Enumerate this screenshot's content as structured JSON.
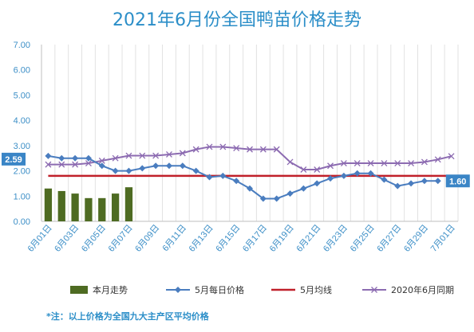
{
  "chart_data": {
    "type": "line",
    "title": "2021年6月份全国鸭苗价格走势",
    "ylim": [
      0,
      7
    ],
    "y_ticks": [
      "0.00",
      "1.00",
      "2.00",
      "3.00",
      "4.00",
      "5.00",
      "6.00",
      "7.00"
    ],
    "x_tick_labels": [
      "6月01日",
      "6月03日",
      "6月05日",
      "6月07日",
      "6月09日",
      "6月11日",
      "6月13日",
      "6月15日",
      "6月17日",
      "6月19日",
      "6月21日",
      "6月23日",
      "6月25日",
      "6月27日",
      "6月29日",
      "7月01日"
    ],
    "grid": "vertical",
    "legend_position": "bottom",
    "colors": {
      "bars": "#4e6b22",
      "daily": "#4a7dbf",
      "avg": "#c0202a",
      "last_year": "#8c6bb1",
      "axis_text": "#3d8fc7",
      "title": "#2b8ec8",
      "callout_bg": "#3a85c6"
    },
    "series": [
      {
        "name": "本月走势",
        "kind": "bar",
        "x": [
          1,
          2,
          3,
          4,
          5,
          6,
          7
        ],
        "values": [
          1.3,
          1.2,
          1.1,
          0.92,
          0.92,
          1.1,
          1.35
        ]
      },
      {
        "name": "5月每日价格",
        "kind": "line",
        "marker": "diamond",
        "x": [
          1,
          2,
          3,
          4,
          5,
          6,
          7,
          8,
          9,
          10,
          11,
          12,
          13,
          14,
          15,
          16,
          17,
          18,
          19,
          20,
          21,
          22,
          23,
          24,
          25,
          26,
          27,
          28,
          29,
          30
        ],
        "values": [
          2.59,
          2.5,
          2.5,
          2.5,
          2.2,
          2.0,
          2.0,
          2.1,
          2.2,
          2.2,
          2.2,
          2.0,
          1.75,
          1.8,
          1.6,
          1.3,
          0.9,
          0.9,
          1.1,
          1.3,
          1.5,
          1.7,
          1.8,
          1.9,
          1.9,
          1.65,
          1.4,
          1.5,
          1.6,
          1.6
        ]
      },
      {
        "name": "5月均线",
        "kind": "line",
        "x": [
          1,
          31
        ],
        "values": [
          1.8,
          1.8
        ]
      },
      {
        "name": "2020年6月同期",
        "kind": "line",
        "marker": "x",
        "x": [
          1,
          2,
          3,
          4,
          5,
          6,
          7,
          8,
          9,
          10,
          11,
          12,
          13,
          14,
          15,
          16,
          17,
          18,
          19,
          20,
          21,
          22,
          23,
          24,
          25,
          26,
          27,
          28,
          29,
          30,
          31
        ],
        "values": [
          2.25,
          2.25,
          2.25,
          2.3,
          2.4,
          2.5,
          2.6,
          2.6,
          2.6,
          2.65,
          2.7,
          2.85,
          2.95,
          2.95,
          2.9,
          2.85,
          2.85,
          2.85,
          2.35,
          2.05,
          2.05,
          2.2,
          2.3,
          2.3,
          2.3,
          2.3,
          2.3,
          2.3,
          2.35,
          2.45,
          2.58
        ]
      }
    ],
    "annotations": [
      {
        "text": "2.59",
        "series": "5月每日价格",
        "x": 1,
        "value": 2.59
      },
      {
        "text": "1.60",
        "series": "5月每日价格",
        "x": 30,
        "value": 1.6
      }
    ],
    "note": "*注：以上价格为全国九大主产区平均价格"
  }
}
